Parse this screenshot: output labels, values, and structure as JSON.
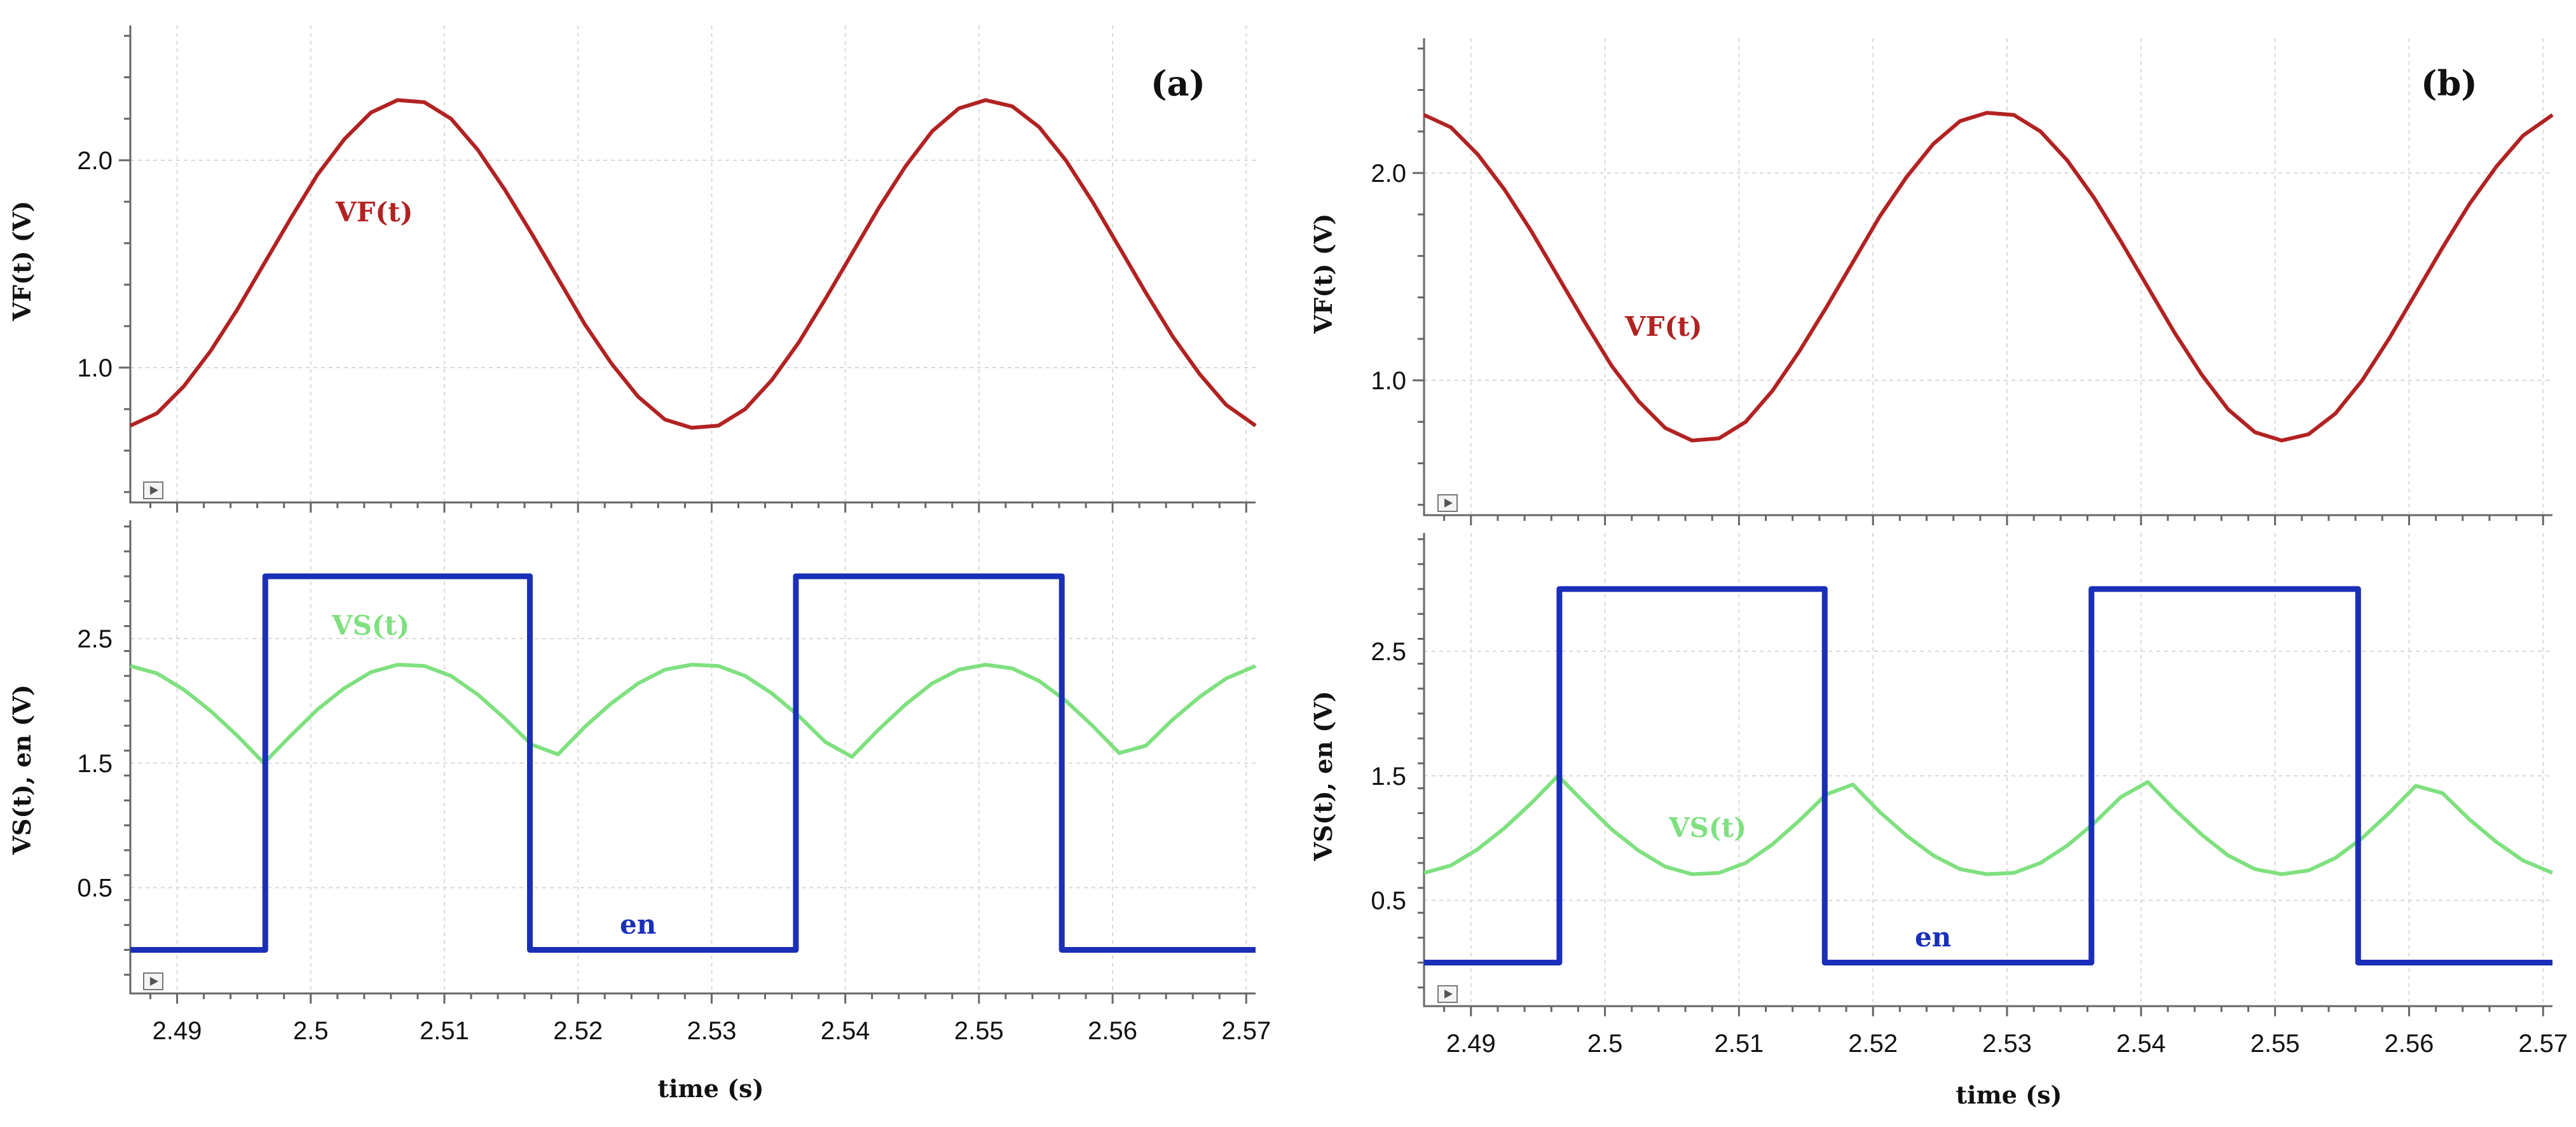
{
  "chart_data": [
    {
      "type": "line",
      "panel": "(a)",
      "xlabel": "time (s)",
      "xlim": [
        2.4865,
        2.5707
      ],
      "xticks": [
        2.49,
        2.5,
        2.51,
        2.52,
        2.53,
        2.54,
        2.55,
        2.56,
        2.57
      ],
      "xtick_labels": [
        "2.49",
        "2.5",
        "2.51",
        "2.52",
        "2.53",
        "2.54",
        "2.55",
        "2.56",
        "2.57"
      ],
      "top": {
        "ylabel": "VF(t) (V)",
        "ylim": [
          0.35,
          2.65
        ],
        "yticks": [
          1.0,
          2.0
        ],
        "ytick_labels": [
          "1.0",
          "2.0"
        ],
        "series": [
          {
            "name": "VF(t)",
            "label": "VF(t)",
            "color": "#b22222",
            "x": [
              2.4865,
              2.4885,
              2.4905,
              2.4925,
              2.4945,
              2.4965,
              2.4985,
              2.5005,
              2.5025,
              2.5045,
              2.5065,
              2.5085,
              2.5105,
              2.5125,
              2.5145,
              2.5165,
              2.5185,
              2.5205,
              2.5225,
              2.5245,
              2.5265,
              2.5285,
              2.5305,
              2.5325,
              2.5345,
              2.5365,
              2.5385,
              2.5405,
              2.5425,
              2.5445,
              2.5465,
              2.5485,
              2.5505,
              2.5525,
              2.5545,
              2.5565,
              2.5585,
              2.5605,
              2.5625,
              2.5645,
              2.5665,
              2.5685,
              2.5707
            ],
            "y": [
              0.72,
              0.78,
              0.91,
              1.08,
              1.28,
              1.5,
              1.72,
              1.93,
              2.1,
              2.23,
              2.29,
              2.28,
              2.2,
              2.05,
              1.86,
              1.65,
              1.43,
              1.21,
              1.02,
              0.86,
              0.75,
              0.71,
              0.72,
              0.8,
              0.94,
              1.12,
              1.33,
              1.55,
              1.77,
              1.97,
              2.14,
              2.25,
              2.29,
              2.26,
              2.16,
              2.0,
              1.8,
              1.58,
              1.36,
              1.15,
              0.97,
              0.82,
              0.72
            ]
          }
        ]
      },
      "bottom": {
        "ylabel": "VS(t), en (V)",
        "ylim": [
          -0.35,
          3.45
        ],
        "yticks": [
          0.5,
          1.5,
          2.5
        ],
        "ytick_labels": [
          "0.5",
          "1.5",
          "2.5"
        ],
        "series": [
          {
            "name": "VS(t)",
            "label": "VS(t)",
            "color": "#7fe07f",
            "x": [
              2.4865,
              2.4885,
              2.4905,
              2.4925,
              2.4945,
              2.4965,
              2.4985,
              2.5005,
              2.5025,
              2.5045,
              2.5065,
              2.5085,
              2.5105,
              2.5125,
              2.5145,
              2.5165,
              2.5185,
              2.5205,
              2.5225,
              2.5245,
              2.5265,
              2.5285,
              2.5305,
              2.5325,
              2.5345,
              2.5365,
              2.5385,
              2.5405,
              2.5425,
              2.5445,
              2.5465,
              2.5485,
              2.5505,
              2.5525,
              2.5545,
              2.5565,
              2.5585,
              2.5605,
              2.5625,
              2.5645,
              2.5665,
              2.5685,
              2.5707
            ],
            "y": [
              2.28,
              2.22,
              2.09,
              1.92,
              1.72,
              1.5,
              1.72,
              1.93,
              2.1,
              2.23,
              2.29,
              2.28,
              2.2,
              2.05,
              1.86,
              1.65,
              1.57,
              1.79,
              1.98,
              2.14,
              2.25,
              2.29,
              2.28,
              2.2,
              2.06,
              1.88,
              1.67,
              1.55,
              1.77,
              1.97,
              2.14,
              2.25,
              2.29,
              2.26,
              2.16,
              2.0,
              1.8,
              1.58,
              1.64,
              1.85,
              2.03,
              2.18,
              2.28
            ]
          },
          {
            "name": "en",
            "label": "en",
            "color": "#1a2fb8",
            "x": [
              2.4865,
              2.4966,
              2.4966,
              2.5164,
              2.5164,
              2.5363,
              2.5363,
              2.5562,
              2.5562,
              2.5707
            ],
            "y": [
              0.0,
              0.0,
              3.0,
              3.0,
              0.0,
              0.0,
              3.0,
              3.0,
              0.0,
              0.0
            ]
          }
        ]
      }
    },
    {
      "type": "line",
      "panel": "(b)",
      "xlabel": "time (s)",
      "xlim": [
        2.4865,
        2.5707
      ],
      "xticks": [
        2.49,
        2.5,
        2.51,
        2.52,
        2.53,
        2.54,
        2.55,
        2.56,
        2.57
      ],
      "xtick_labels": [
        "2.49",
        "2.5",
        "2.51",
        "2.52",
        "2.53",
        "2.54",
        "2.55",
        "2.56",
        "2.57"
      ],
      "top": {
        "ylabel": "VF(t) (V)",
        "ylim": [
          0.35,
          2.65
        ],
        "yticks": [
          1.0,
          2.0
        ],
        "ytick_labels": [
          "1.0",
          "2.0"
        ],
        "series": [
          {
            "name": "VF(t)",
            "label": "VF(t)",
            "color": "#b22222",
            "x": [
              2.4865,
              2.4885,
              2.4905,
              2.4925,
              2.4945,
              2.4965,
              2.4985,
              2.5005,
              2.5025,
              2.5045,
              2.5065,
              2.5085,
              2.5105,
              2.5125,
              2.5145,
              2.5165,
              2.5185,
              2.5205,
              2.5225,
              2.5245,
              2.5265,
              2.5285,
              2.5305,
              2.5325,
              2.5345,
              2.5365,
              2.5385,
              2.5405,
              2.5425,
              2.5445,
              2.5465,
              2.5485,
              2.5505,
              2.5525,
              2.5545,
              2.5565,
              2.5585,
              2.5605,
              2.5625,
              2.5645,
              2.5665,
              2.5685,
              2.5707
            ],
            "y": [
              2.28,
              2.22,
              2.09,
              1.92,
              1.72,
              1.5,
              1.28,
              1.07,
              0.9,
              0.77,
              0.71,
              0.72,
              0.8,
              0.95,
              1.14,
              1.35,
              1.57,
              1.79,
              1.98,
              2.14,
              2.25,
              2.29,
              2.28,
              2.2,
              2.06,
              1.88,
              1.67,
              1.45,
              1.23,
              1.03,
              0.86,
              0.75,
              0.71,
              0.74,
              0.84,
              1.0,
              1.2,
              1.42,
              1.64,
              1.85,
              2.03,
              2.18,
              2.28
            ]
          }
        ]
      },
      "bottom": {
        "ylabel": "VS(t), en (V)",
        "ylim": [
          -0.35,
          3.45
        ],
        "yticks": [
          0.5,
          1.5,
          2.5
        ],
        "ytick_labels": [
          "0.5",
          "1.5",
          "2.5"
        ],
        "series": [
          {
            "name": "VS(t)",
            "label": "VS(t)",
            "color": "#7fe07f",
            "x": [
              2.4865,
              2.4885,
              2.4905,
              2.4925,
              2.4945,
              2.4965,
              2.4985,
              2.5005,
              2.5025,
              2.5045,
              2.5065,
              2.5085,
              2.5105,
              2.5125,
              2.5145,
              2.5165,
              2.5185,
              2.5205,
              2.5225,
              2.5245,
              2.5265,
              2.5285,
              2.5305,
              2.5325,
              2.5345,
              2.5365,
              2.5385,
              2.5405,
              2.5425,
              2.5445,
              2.5465,
              2.5485,
              2.5505,
              2.5525,
              2.5545,
              2.5565,
              2.5585,
              2.5605,
              2.5625,
              2.5645,
              2.5665,
              2.5685,
              2.5707
            ],
            "y": [
              0.72,
              0.78,
              0.91,
              1.08,
              1.28,
              1.5,
              1.28,
              1.07,
              0.9,
              0.77,
              0.71,
              0.72,
              0.8,
              0.95,
              1.14,
              1.35,
              1.43,
              1.21,
              1.02,
              0.86,
              0.75,
              0.71,
              0.72,
              0.8,
              0.94,
              1.12,
              1.33,
              1.45,
              1.23,
              1.03,
              0.86,
              0.75,
              0.71,
              0.74,
              0.84,
              1.0,
              1.2,
              1.42,
              1.36,
              1.15,
              0.97,
              0.82,
              0.72
            ]
          },
          {
            "name": "en",
            "label": "en",
            "color": "#1a2fb8",
            "x": [
              2.4865,
              2.4966,
              2.4966,
              2.5164,
              2.5164,
              2.5363,
              2.5363,
              2.5562,
              2.5562,
              2.5707
            ],
            "y": [
              0.0,
              0.0,
              3.0,
              3.0,
              0.0,
              0.0,
              3.0,
              3.0,
              0.0,
              0.0
            ]
          }
        ]
      }
    }
  ]
}
